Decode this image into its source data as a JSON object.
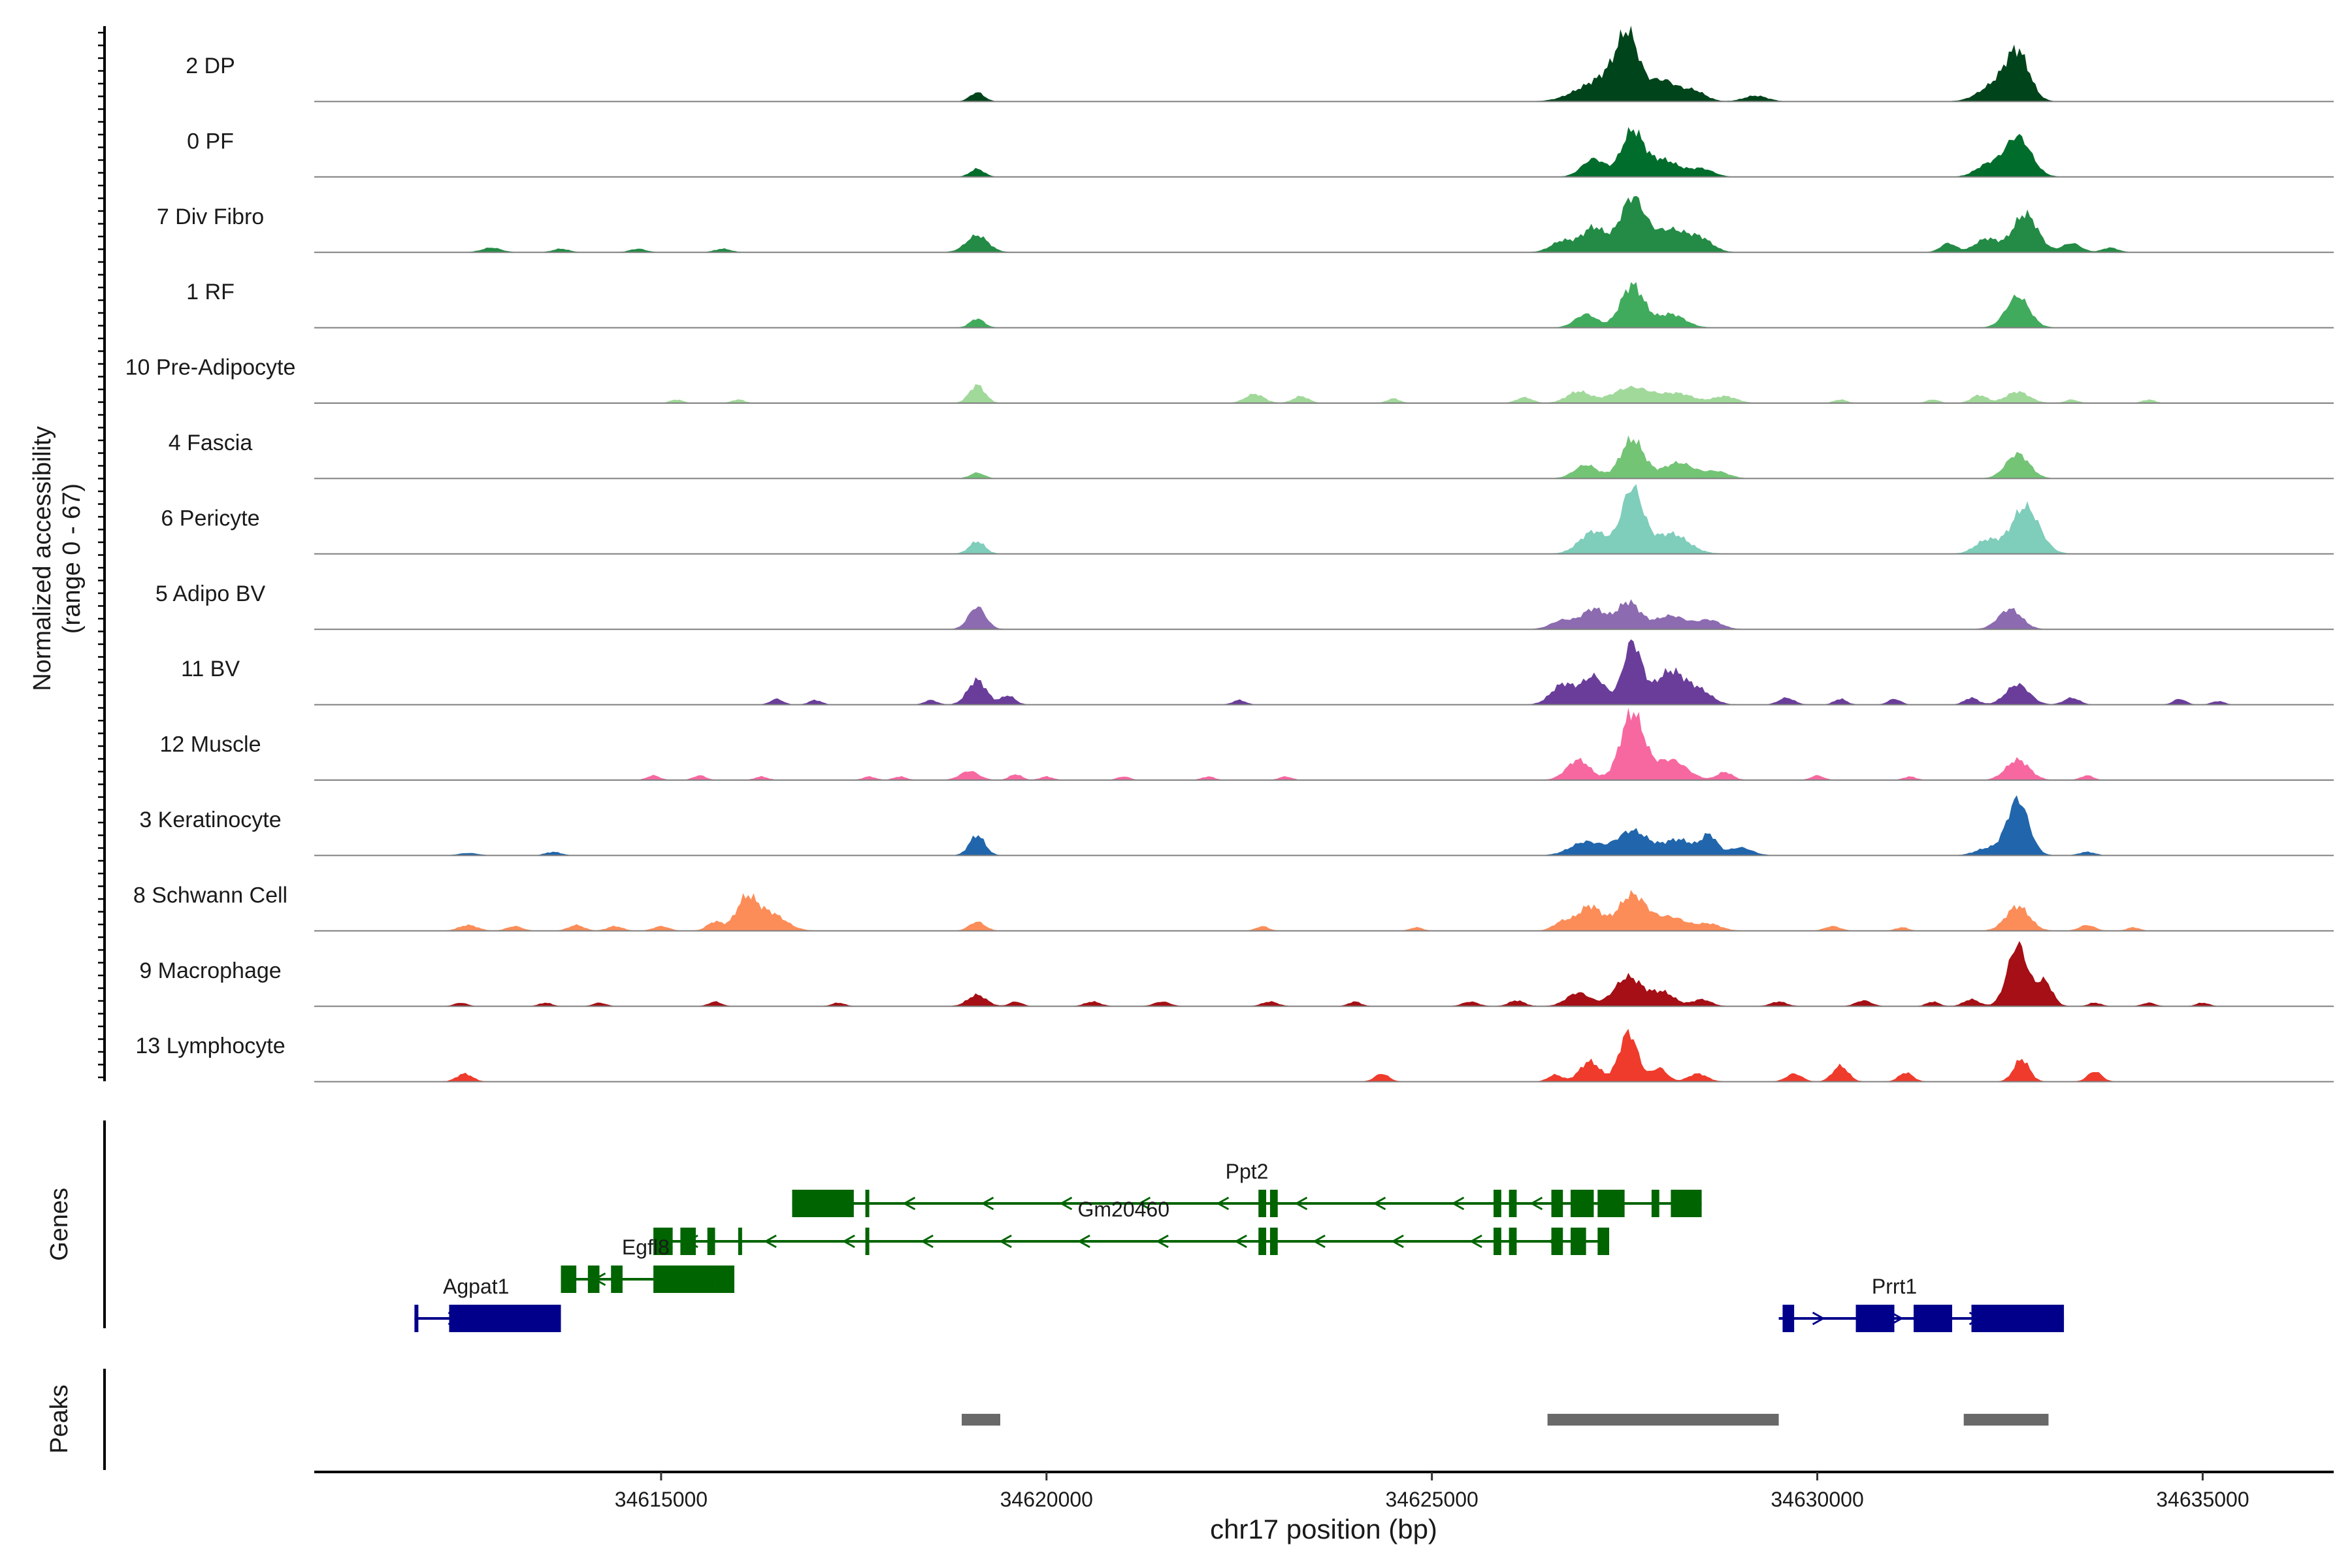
{
  "chart_data": {
    "type": "area",
    "y_axis_title": [
      "Normalized accessibility",
      "(range 0 - 67)"
    ],
    "y_range": [
      0,
      67
    ],
    "xlabel": "chr17 position (bp)",
    "xlim": [
      34610500,
      34636700
    ],
    "x_ticks": [
      34615000,
      34620000,
      34625000,
      34630000,
      34635000
    ],
    "x_tick_labels": [
      "34615000",
      "34620000",
      "34625000",
      "34630000",
      "34635000"
    ],
    "tracks": [
      {
        "label": "2 DP",
        "color": "#00441b",
        "peaks": [
          [
            34619100,
            8,
            90
          ],
          [
            34627050,
            12,
            250
          ],
          [
            34627550,
            38,
            130
          ],
          [
            34627450,
            25,
            220
          ],
          [
            34628000,
            18,
            180
          ],
          [
            34628400,
            9,
            150
          ],
          [
            34629200,
            5,
            150
          ],
          [
            34632600,
            42,
            150
          ],
          [
            34632300,
            14,
            200
          ]
        ]
      },
      {
        "label": "0 PF",
        "color": "#006d2c",
        "peaks": [
          [
            34619100,
            7,
            90
          ],
          [
            34627100,
            16,
            150
          ],
          [
            34627600,
            40,
            140
          ],
          [
            34628000,
            15,
            200
          ],
          [
            34628500,
            7,
            150
          ],
          [
            34632600,
            36,
            170
          ],
          [
            34632200,
            10,
            150
          ]
        ]
      },
      {
        "label": "7 Div Fibro",
        "color": "#238b45",
        "peaks": [
          [
            34612800,
            4,
            120
          ],
          [
            34613700,
            3,
            100
          ],
          [
            34614700,
            3,
            100
          ],
          [
            34615800,
            3,
            100
          ],
          [
            34619100,
            15,
            140
          ],
          [
            34626700,
            10,
            150
          ],
          [
            34627100,
            22,
            150
          ],
          [
            34627600,
            48,
            160
          ],
          [
            34628100,
            20,
            220
          ],
          [
            34628500,
            10,
            150
          ],
          [
            34631700,
            8,
            100
          ],
          [
            34632200,
            12,
            150
          ],
          [
            34632700,
            34,
            160
          ],
          [
            34633300,
            8,
            120
          ],
          [
            34633800,
            4,
            100
          ]
        ]
      },
      {
        "label": "1 RF",
        "color": "#41ab5d",
        "peaks": [
          [
            34619100,
            8,
            90
          ],
          [
            34627000,
            12,
            140
          ],
          [
            34627600,
            38,
            150
          ],
          [
            34628100,
            12,
            180
          ],
          [
            34632600,
            28,
            150
          ]
        ]
      },
      {
        "label": "10 Pre-Adipocyte",
        "color": "#a1d99b",
        "peaks": [
          [
            34615200,
            3,
            80
          ],
          [
            34616000,
            3,
            80
          ],
          [
            34619100,
            16,
            100
          ],
          [
            34622700,
            8,
            120
          ],
          [
            34623300,
            6,
            100
          ],
          [
            34624500,
            4,
            80
          ],
          [
            34626200,
            5,
            100
          ],
          [
            34626900,
            10,
            150
          ],
          [
            34627600,
            14,
            250
          ],
          [
            34628200,
            8,
            200
          ],
          [
            34628800,
            6,
            150
          ],
          [
            34630300,
            3,
            80
          ],
          [
            34631500,
            3,
            80
          ],
          [
            34632100,
            7,
            100
          ],
          [
            34632600,
            10,
            150
          ],
          [
            34633300,
            3,
            80
          ],
          [
            34634300,
            3,
            80
          ]
        ]
      },
      {
        "label": "4 Fascia",
        "color": "#74c476",
        "peaks": [
          [
            34619100,
            5,
            90
          ],
          [
            34627000,
            12,
            150
          ],
          [
            34627600,
            35,
            150
          ],
          [
            34628200,
            14,
            200
          ],
          [
            34628700,
            6,
            150
          ],
          [
            34632600,
            22,
            150
          ]
        ]
      },
      {
        "label": "6 Pericyte",
        "color": "#7fcdbb",
        "peaks": [
          [
            34619100,
            11,
            100
          ],
          [
            34627100,
            20,
            180
          ],
          [
            34627600,
            58,
            140
          ],
          [
            34628100,
            18,
            220
          ],
          [
            34632200,
            12,
            150
          ],
          [
            34632700,
            42,
            180
          ]
        ]
      },
      {
        "label": "5 Adipo BV",
        "color": "#8c6bb1",
        "peaks": [
          [
            34619100,
            20,
            110
          ],
          [
            34626700,
            8,
            150
          ],
          [
            34627100,
            18,
            150
          ],
          [
            34627550,
            24,
            150
          ],
          [
            34628100,
            12,
            200
          ],
          [
            34628600,
            8,
            150
          ],
          [
            34632500,
            18,
            150
          ]
        ]
      },
      {
        "label": "11 BV",
        "color": "#6a3d9a",
        "peaks": [
          [
            34616500,
            5,
            80
          ],
          [
            34617000,
            4,
            80
          ],
          [
            34618500,
            4,
            80
          ],
          [
            34619100,
            22,
            120
          ],
          [
            34619500,
            8,
            90
          ],
          [
            34622500,
            4,
            80
          ],
          [
            34626700,
            18,
            150
          ],
          [
            34627100,
            25,
            150
          ],
          [
            34627600,
            55,
            120
          ],
          [
            34628100,
            30,
            200
          ],
          [
            34628500,
            10,
            150
          ],
          [
            34629600,
            6,
            100
          ],
          [
            34630300,
            5,
            80
          ],
          [
            34631000,
            5,
            80
          ],
          [
            34632000,
            6,
            90
          ],
          [
            34632600,
            18,
            150
          ],
          [
            34633300,
            6,
            100
          ],
          [
            34634700,
            5,
            80
          ],
          [
            34635200,
            3,
            80
          ]
        ]
      },
      {
        "label": "12 Muscle",
        "color": "#f768a1",
        "peaks": [
          [
            34614900,
            4,
            80
          ],
          [
            34615500,
            4,
            80
          ],
          [
            34616300,
            3,
            80
          ],
          [
            34617700,
            3,
            80
          ],
          [
            34618100,
            3,
            80
          ],
          [
            34619000,
            8,
            120
          ],
          [
            34619600,
            5,
            80
          ],
          [
            34620000,
            3,
            80
          ],
          [
            34621000,
            3,
            80
          ],
          [
            34622100,
            3,
            80
          ],
          [
            34623100,
            3,
            80
          ],
          [
            34626900,
            18,
            150
          ],
          [
            34627600,
            60,
            150
          ],
          [
            34628100,
            18,
            200
          ],
          [
            34628800,
            7,
            100
          ],
          [
            34630000,
            4,
            80
          ],
          [
            34631200,
            3,
            80
          ],
          [
            34632600,
            18,
            150
          ],
          [
            34633500,
            4,
            80
          ]
        ]
      },
      {
        "label": "3 Keratinocyte",
        "color": "#2166ac",
        "peaks": [
          [
            34612500,
            2,
            120
          ],
          [
            34613600,
            3,
            100
          ],
          [
            34619100,
            18,
            100
          ],
          [
            34627000,
            12,
            200
          ],
          [
            34627600,
            22,
            200
          ],
          [
            34628200,
            14,
            200
          ],
          [
            34628600,
            17,
            100
          ],
          [
            34629000,
            7,
            150
          ],
          [
            34632600,
            50,
            140
          ],
          [
            34632200,
            6,
            150
          ],
          [
            34633500,
            3,
            100
          ]
        ]
      },
      {
        "label": "8 Schwann Cell",
        "color": "#fc8d59",
        "peaks": [
          [
            34612500,
            5,
            120
          ],
          [
            34613100,
            4,
            100
          ],
          [
            34613900,
            5,
            100
          ],
          [
            34614400,
            4,
            100
          ],
          [
            34615000,
            4,
            100
          ],
          [
            34615700,
            8,
            100
          ],
          [
            34616100,
            26,
            130
          ],
          [
            34616400,
            16,
            200
          ],
          [
            34619100,
            8,
            100
          ],
          [
            34622800,
            4,
            80
          ],
          [
            34624800,
            3,
            80
          ],
          [
            34626700,
            8,
            120
          ],
          [
            34627050,
            22,
            150
          ],
          [
            34627600,
            32,
            180
          ],
          [
            34628100,
            12,
            200
          ],
          [
            34628600,
            6,
            150
          ],
          [
            34630200,
            4,
            100
          ],
          [
            34631100,
            3,
            80
          ],
          [
            34632600,
            22,
            150
          ],
          [
            34633500,
            5,
            100
          ],
          [
            34634100,
            3,
            80
          ]
        ]
      },
      {
        "label": "9 Macrophage",
        "color": "#a50f15",
        "peaks": [
          [
            34612400,
            3,
            80
          ],
          [
            34613500,
            3,
            80
          ],
          [
            34614200,
            3,
            80
          ],
          [
            34615700,
            4,
            80
          ],
          [
            34617300,
            3,
            80
          ],
          [
            34619100,
            10,
            120
          ],
          [
            34619600,
            4,
            80
          ],
          [
            34620600,
            4,
            100
          ],
          [
            34621500,
            4,
            100
          ],
          [
            34622900,
            4,
            100
          ],
          [
            34624000,
            4,
            80
          ],
          [
            34625500,
            4,
            100
          ],
          [
            34626100,
            5,
            100
          ],
          [
            34626900,
            12,
            150
          ],
          [
            34627550,
            26,
            180
          ],
          [
            34628000,
            12,
            150
          ],
          [
            34628500,
            6,
            120
          ],
          [
            34629500,
            4,
            100
          ],
          [
            34630600,
            5,
            100
          ],
          [
            34631500,
            4,
            80
          ],
          [
            34632000,
            6,
            100
          ],
          [
            34632600,
            55,
            130
          ],
          [
            34632950,
            22,
            100
          ],
          [
            34633600,
            3,
            80
          ],
          [
            34634300,
            3,
            80
          ],
          [
            34635000,
            3,
            80
          ]
        ]
      },
      {
        "label": "13 Lymphocyte",
        "color": "#ef3b2c",
        "peaks": [
          [
            34612450,
            7,
            100
          ],
          [
            34624350,
            7,
            90
          ],
          [
            34626600,
            6,
            90
          ],
          [
            34627050,
            18,
            130
          ],
          [
            34627550,
            44,
            120
          ],
          [
            34627950,
            12,
            100
          ],
          [
            34628450,
            7,
            120
          ],
          [
            34629700,
            7,
            100
          ],
          [
            34630300,
            14,
            100
          ],
          [
            34631150,
            8,
            90
          ],
          [
            34632650,
            20,
            100
          ],
          [
            34633600,
            9,
            90
          ]
        ]
      }
    ],
    "genes_track_label": "Genes",
    "genes": [
      {
        "name": "Ppt2",
        "strand": "-",
        "color": "#006400",
        "start": 34616700,
        "end": 34628500,
        "row": 0,
        "exons": [
          [
            34616700,
            34617500
          ],
          [
            34617650,
            34617700
          ],
          [
            34622750,
            34622850
          ],
          [
            34622900,
            34623000
          ],
          [
            34625800,
            34625900
          ],
          [
            34626000,
            34626100
          ],
          [
            34626550,
            34626700
          ],
          [
            34626800,
            34627100
          ],
          [
            34627150,
            34627500
          ],
          [
            34627850,
            34627950
          ],
          [
            34628100,
            34628500
          ]
        ],
        "label_pos": 34622600
      },
      {
        "name": "Gm20460",
        "strand": "-",
        "color": "#006400",
        "start": 34614900,
        "end": 34627300,
        "row": 1,
        "exons": [
          [
            34614900,
            34615150
          ],
          [
            34615250,
            34615450
          ],
          [
            34615600,
            34615700
          ],
          [
            34616000,
            34616050
          ],
          [
            34617650,
            34617700
          ],
          [
            34622750,
            34622850
          ],
          [
            34622900,
            34623000
          ],
          [
            34625800,
            34625900
          ],
          [
            34626000,
            34626100
          ],
          [
            34626550,
            34626700
          ],
          [
            34626800,
            34627000
          ],
          [
            34627150,
            34627300
          ]
        ],
        "label_pos": 34621000
      },
      {
        "name": "Egfl8",
        "strand": "-",
        "color": "#006400",
        "start": 34613700,
        "end": 34615950,
        "row": 2,
        "exons": [
          [
            34613700,
            34613900
          ],
          [
            34614050,
            34614200
          ],
          [
            34614350,
            34614500
          ],
          [
            34614900,
            34615700
          ],
          [
            34615700,
            34615950
          ]
        ],
        "label_pos": 34614800
      },
      {
        "name": "Agpat1",
        "strand": "+",
        "color": "#00008b",
        "start": 34611800,
        "end": 34613700,
        "row": 3,
        "exons": [
          [
            34611800,
            34611850
          ],
          [
            34612250,
            34613700
          ]
        ],
        "label_pos": 34612600
      },
      {
        "name": "Prrt1",
        "strand": "+",
        "color": "#00008b",
        "start": 34629500,
        "end": 34633200,
        "row": 3,
        "exons": [
          [
            34629550,
            34629700
          ],
          [
            34630500,
            34631000
          ],
          [
            34631250,
            34631750
          ],
          [
            34632000,
            34633200
          ]
        ],
        "label_pos": 34631000
      }
    ],
    "peaks_track_label": "Peaks",
    "peak_regions": [
      [
        34618900,
        34619400
      ],
      [
        34626500,
        34629500
      ],
      [
        34631900,
        34633000
      ]
    ],
    "peak_color": "#696969"
  }
}
